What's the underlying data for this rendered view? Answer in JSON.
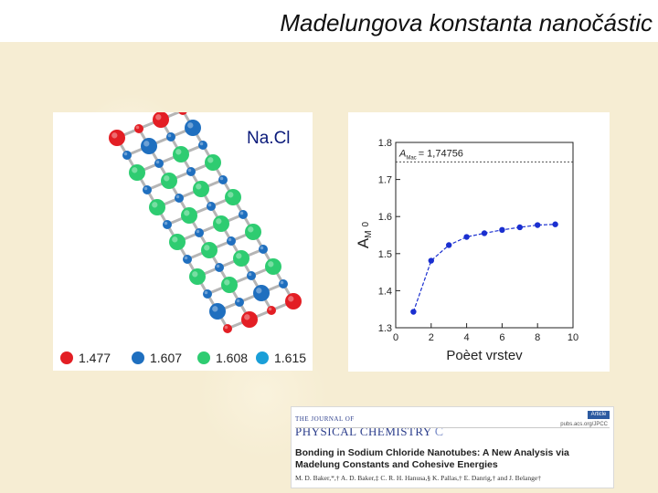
{
  "slide": {
    "title": "Madelungova konstanta nanočástic"
  },
  "structure_figure": {
    "label": "Na.Cl",
    "atom_colors": {
      "red": "#e31e24",
      "blue": "#1f6fbf",
      "green": "#2ecc71",
      "cyan": "#1a9fd8",
      "bond": "#b5b5b5"
    },
    "legend": [
      {
        "color": "#e31e24",
        "value": "1.477"
      },
      {
        "color": "#1f6fbf",
        "value": "1.607"
      },
      {
        "color": "#2ecc71",
        "value": "1.608"
      },
      {
        "color": "#1a9fd8",
        "value": "1.615"
      }
    ]
  },
  "chart_data": {
    "type": "line",
    "xlabel": "Poèet vrstev",
    "ylabel": "A_M",
    "ylabel_main": "A",
    "ylabel_sub": "M",
    "ylabel_extra": "0",
    "xlim": [
      0,
      10
    ],
    "ylim": [
      1.3,
      1.8
    ],
    "xticks": [
      0,
      2,
      4,
      6,
      8,
      10
    ],
    "yticks": [
      1.3,
      1.4,
      1.5,
      1.6,
      1.7,
      1.8
    ],
    "x": [
      1,
      2,
      3,
      4,
      5,
      6,
      7,
      8,
      9
    ],
    "y": [
      1.343,
      1.481,
      1.523,
      1.545,
      1.555,
      1.564,
      1.571,
      1.577,
      1.579
    ],
    "reference_line": {
      "y": 1.74756,
      "label_main": "A",
      "label_sub": "Mac",
      "label_value": "= 1,74756"
    },
    "line_color": "#1a2fd0",
    "grid": false
  },
  "paper": {
    "journal_prefix": "THE JOURNAL OF",
    "journal_name": "PHYSICAL CHEMISTRY",
    "journal_letter": "C",
    "badge": "Article",
    "link": "pubs.acs.org/JPCC",
    "title": "Bonding in Sodium Chloride Nanotubes: A New Analysis via Madelung Constants and Cohesive Energies",
    "authors": "M. D. Baker,*,† A. D. Baker,‡ C. R. H. Hanusa,§ K. Pallas,† E. Danrig,† and J. Belange†"
  }
}
